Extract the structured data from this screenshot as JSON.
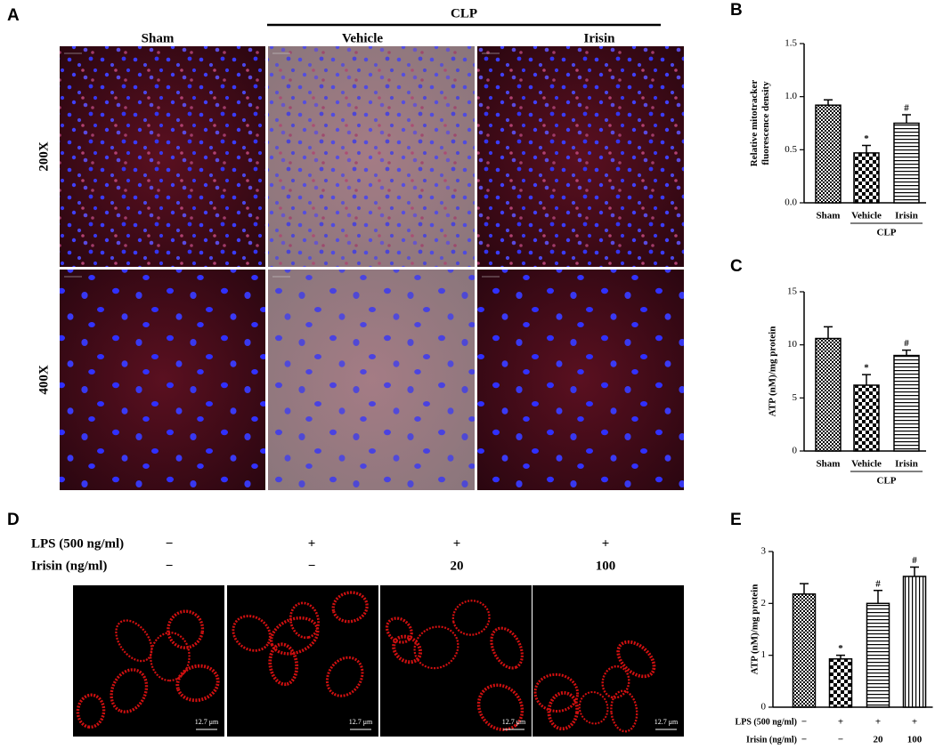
{
  "panel_labels": [
    "A",
    "B",
    "C",
    "D",
    "E"
  ],
  "panel_a": {
    "group_label": "CLP",
    "columns": [
      "Sham",
      "Vehicle",
      "Irisin"
    ],
    "rows": [
      "200X",
      "400X"
    ]
  },
  "panel_d": {
    "conditions": [
      {
        "label": "LPS (500 ng/ml)",
        "values": [
          "−",
          "+",
          "+",
          "+"
        ]
      },
      {
        "label": "Irisin (ng/ml)",
        "values": [
          "−",
          "−",
          "20",
          "100"
        ]
      }
    ],
    "scale_bar": "12.7 μm"
  },
  "chart_data": [
    {
      "type": "bar",
      "ylabel": [
        "Relative mitotracker",
        "fluorescence density"
      ],
      "categories": [
        "Sham",
        "Vehicle",
        "Irisin"
      ],
      "group_label": "CLP",
      "values": [
        0.92,
        0.47,
        0.75
      ],
      "errors": [
        0.05,
        0.07,
        0.08
      ],
      "markers": [
        null,
        "*",
        "#"
      ],
      "patterns": [
        "grid",
        "checker",
        "hlines"
      ],
      "color": "#000000",
      "ylim": [
        0,
        1.5
      ],
      "yticks": [
        {
          "value": 0,
          "label": "0.0"
        },
        0.5,
        {
          "value": 1,
          "label": "1.0"
        },
        1.5
      ]
    },
    {
      "type": "bar",
      "ylabel": [
        "ATP (nM)/mg  protein"
      ],
      "categories": [
        "Sham",
        "Vehicle",
        "Irisin"
      ],
      "group_label": "CLP",
      "values": [
        10.6,
        6.2,
        9.0
      ],
      "errors": [
        1.1,
        1.0,
        0.5
      ],
      "markers": [
        null,
        "*",
        "#"
      ],
      "patterns": [
        "grid",
        "checker",
        "hlines"
      ],
      "color": "#000000",
      "ylim": [
        0,
        15
      ],
      "yticks": [
        0,
        5,
        10,
        15
      ]
    },
    {
      "type": "bar",
      "ylabel": [
        "ATP (nM)/mg  protein"
      ],
      "conditions": [
        {
          "label": "LPS (500 ng/ml)",
          "values": [
            "−",
            "+",
            "+",
            "+"
          ]
        },
        {
          "label": "Irisin (ng/ml)",
          "values": [
            "−",
            "−",
            "20",
            "100"
          ]
        }
      ],
      "values": [
        2.18,
        0.93,
        2.0,
        2.52
      ],
      "errors": [
        0.2,
        0.07,
        0.25,
        0.18
      ],
      "markers": [
        null,
        "*",
        "#",
        "#"
      ],
      "patterns": [
        "grid",
        "checker",
        "hlines",
        "vlines"
      ],
      "color": "#000000",
      "ylim": [
        0,
        3
      ],
      "yticks": [
        0,
        1,
        2,
        3
      ]
    }
  ]
}
